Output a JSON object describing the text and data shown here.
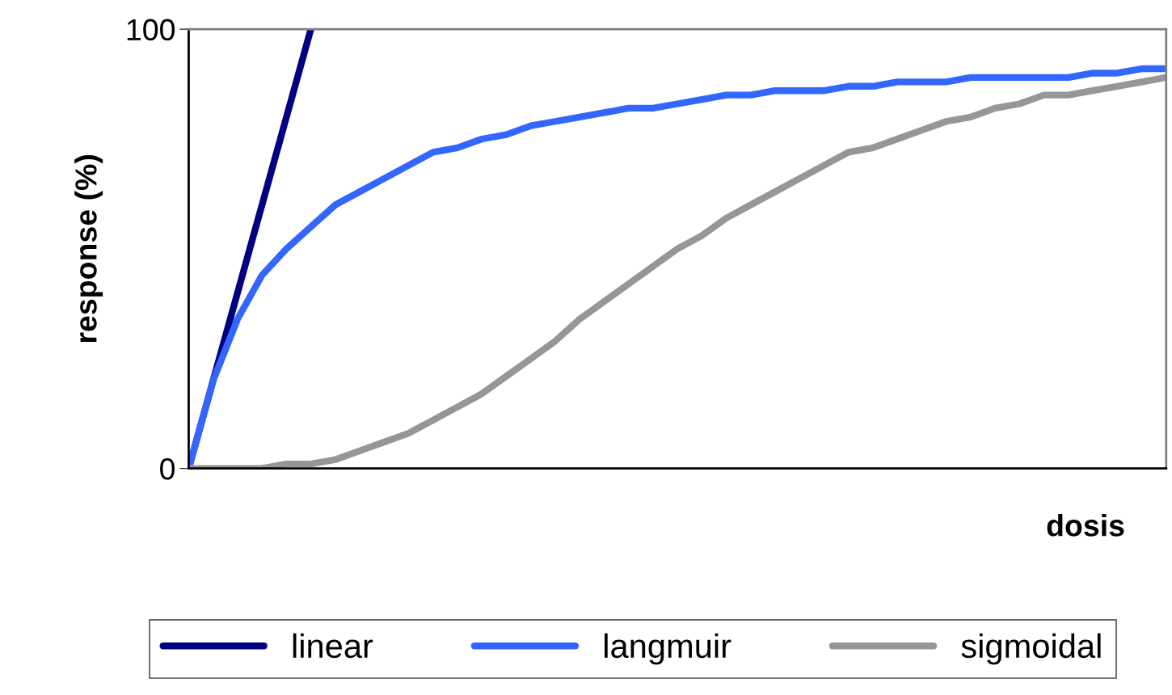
{
  "chart_data": {
    "type": "line",
    "xlabel": "dosis",
    "ylabel": "response (%)",
    "categories": [
      null,
      null,
      null,
      null,
      null,
      null,
      null,
      null,
      null,
      null,
      null,
      null,
      null,
      null,
      null,
      null,
      null,
      null,
      null,
      null,
      null,
      null,
      null,
      null,
      null,
      null,
      null,
      null,
      null,
      null,
      null,
      null,
      null,
      null,
      null,
      null,
      null,
      null,
      null,
      null,
      null
    ],
    "series": [
      {
        "name": "linear",
        "color": "#000080",
        "values": [
          0,
          20,
          40,
          60,
          80,
          100,
          null,
          null,
          null,
          null,
          null,
          null,
          null,
          null,
          null,
          null,
          null,
          null,
          null,
          null,
          null,
          null,
          null,
          null,
          null,
          null,
          null,
          null,
          null,
          null,
          null,
          null,
          null,
          null,
          null,
          null,
          null,
          null,
          null,
          null,
          null
        ]
      },
      {
        "name": "langmuir",
        "color": "#3366ff",
        "values": [
          0,
          20,
          34,
          44,
          50,
          55,
          60,
          63,
          66,
          69,
          72,
          73,
          75,
          76,
          78,
          79,
          80,
          81,
          82,
          82,
          83,
          84,
          85,
          85,
          86,
          86,
          86,
          87,
          87,
          88,
          88,
          88,
          89,
          89,
          89,
          89,
          89,
          90,
          90,
          91,
          91
        ]
      },
      {
        "name": "sigmoidal",
        "color": "#969696",
        "values": [
          0,
          0,
          0,
          0,
          1,
          1,
          2,
          4,
          6,
          8,
          11,
          14,
          17,
          21,
          25,
          29,
          34,
          38,
          42,
          46,
          50,
          53,
          57,
          60,
          63,
          66,
          69,
          72,
          73,
          75,
          77,
          79,
          80,
          82,
          83,
          85,
          85,
          86,
          87,
          88,
          89
        ]
      }
    ],
    "ylim": [
      0,
      100
    ],
    "yticks": [
      0,
      100
    ],
    "tick_labels": "y",
    "grid": false,
    "legend": "bottom",
    "marker": "none",
    "line_style": "solid"
  }
}
